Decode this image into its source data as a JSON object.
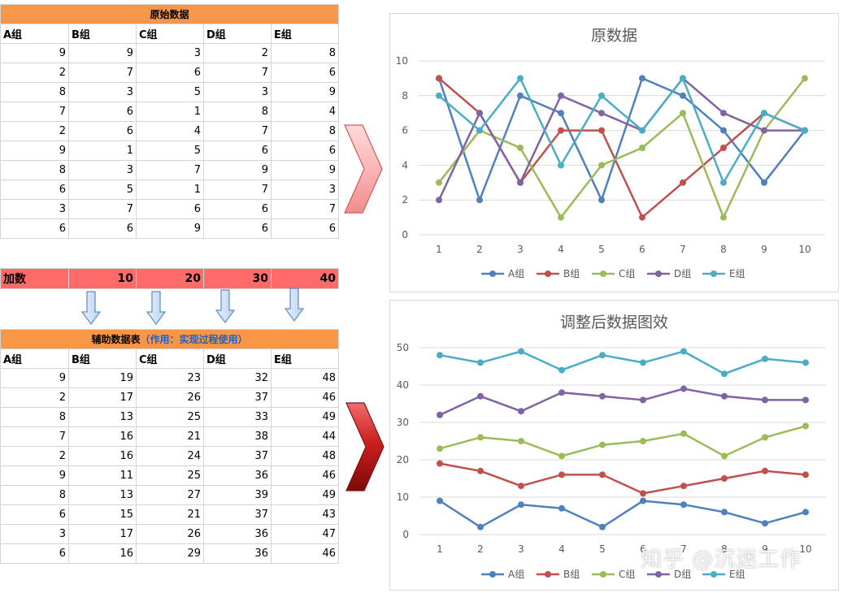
{
  "orig_table": {
    "title": "原始数据",
    "headers": [
      "A组",
      "B组",
      "C组",
      "D组",
      "E组"
    ],
    "rows": [
      [
        9,
        9,
        3,
        2,
        8
      ],
      [
        2,
        7,
        6,
        7,
        6
      ],
      [
        8,
        3,
        5,
        3,
        9
      ],
      [
        7,
        6,
        1,
        8,
        4
      ],
      [
        2,
        6,
        4,
        7,
        8
      ],
      [
        9,
        1,
        5,
        6,
        6
      ],
      [
        8,
        3,
        7,
        9,
        9
      ],
      [
        6,
        5,
        1,
        7,
        3
      ],
      [
        3,
        7,
        6,
        6,
        7
      ],
      [
        6,
        6,
        9,
        6,
        6
      ]
    ]
  },
  "addend": {
    "label": "加数",
    "values": [
      10,
      20,
      30,
      40
    ]
  },
  "aux_table": {
    "title": "辅助数据表",
    "note": "（作用：实现过程使用）",
    "headers": [
      "A组",
      "B组",
      "C组",
      "D组",
      "E组"
    ],
    "rows": [
      [
        9,
        19,
        23,
        32,
        48
      ],
      [
        2,
        17,
        26,
        37,
        46
      ],
      [
        8,
        13,
        25,
        33,
        49
      ],
      [
        7,
        16,
        21,
        38,
        44
      ],
      [
        2,
        16,
        24,
        37,
        48
      ],
      [
        9,
        11,
        25,
        36,
        46
      ],
      [
        8,
        13,
        27,
        39,
        49
      ],
      [
        6,
        15,
        21,
        37,
        43
      ],
      [
        3,
        17,
        26,
        36,
        47
      ],
      [
        6,
        16,
        29,
        36,
        46
      ]
    ]
  },
  "colors": {
    "header_orange": "#f79646",
    "addend_red": "#ff6b6b",
    "note_blue": "#1f60c4"
  },
  "chart_data": [
    {
      "type": "line",
      "title": "原数据",
      "x": [
        1,
        2,
        3,
        4,
        5,
        6,
        7,
        8,
        9,
        10
      ],
      "ylim": [
        0,
        10
      ],
      "yticks": [
        0,
        2,
        4,
        6,
        8,
        10
      ],
      "grid": true,
      "legend": "bottom",
      "series": [
        {
          "name": "A组",
          "color": "#4f81bd",
          "values": [
            9,
            2,
            8,
            7,
            2,
            9,
            8,
            6,
            3,
            6
          ]
        },
        {
          "name": "B组",
          "color": "#c0504d",
          "values": [
            9,
            7,
            3,
            6,
            6,
            1,
            3,
            5,
            7,
            6
          ]
        },
        {
          "name": "C组",
          "color": "#9bbb59",
          "values": [
            3,
            6,
            5,
            1,
            4,
            5,
            7,
            1,
            6,
            9
          ]
        },
        {
          "name": "D组",
          "color": "#8064a2",
          "values": [
            2,
            7,
            3,
            8,
            7,
            6,
            9,
            7,
            6,
            6
          ]
        },
        {
          "name": "E组",
          "color": "#4bacc6",
          "values": [
            8,
            6,
            9,
            4,
            8,
            6,
            9,
            3,
            7,
            6
          ]
        }
      ]
    },
    {
      "type": "line",
      "title": "调整后数据图效",
      "x": [
        1,
        2,
        3,
        4,
        5,
        6,
        7,
        8,
        9,
        10
      ],
      "ylim": [
        0,
        50
      ],
      "yticks": [
        0,
        10,
        20,
        30,
        40,
        50
      ],
      "grid": true,
      "legend": "bottom",
      "series": [
        {
          "name": "A组",
          "color": "#4f81bd",
          "values": [
            9,
            2,
            8,
            7,
            2,
            9,
            8,
            6,
            3,
            6
          ]
        },
        {
          "name": "B组",
          "color": "#c0504d",
          "values": [
            19,
            17,
            13,
            16,
            16,
            11,
            13,
            15,
            17,
            16
          ]
        },
        {
          "name": "C组",
          "color": "#9bbb59",
          "values": [
            23,
            26,
            25,
            21,
            24,
            25,
            27,
            21,
            26,
            29
          ]
        },
        {
          "name": "D组",
          "color": "#8064a2",
          "values": [
            32,
            37,
            33,
            38,
            37,
            36,
            39,
            37,
            36,
            36
          ]
        },
        {
          "name": "E组",
          "color": "#4bacc6",
          "values": [
            48,
            46,
            49,
            44,
            48,
            46,
            49,
            43,
            47,
            46
          ]
        }
      ]
    }
  ],
  "watermark": "知乎 @沉迷工作"
}
